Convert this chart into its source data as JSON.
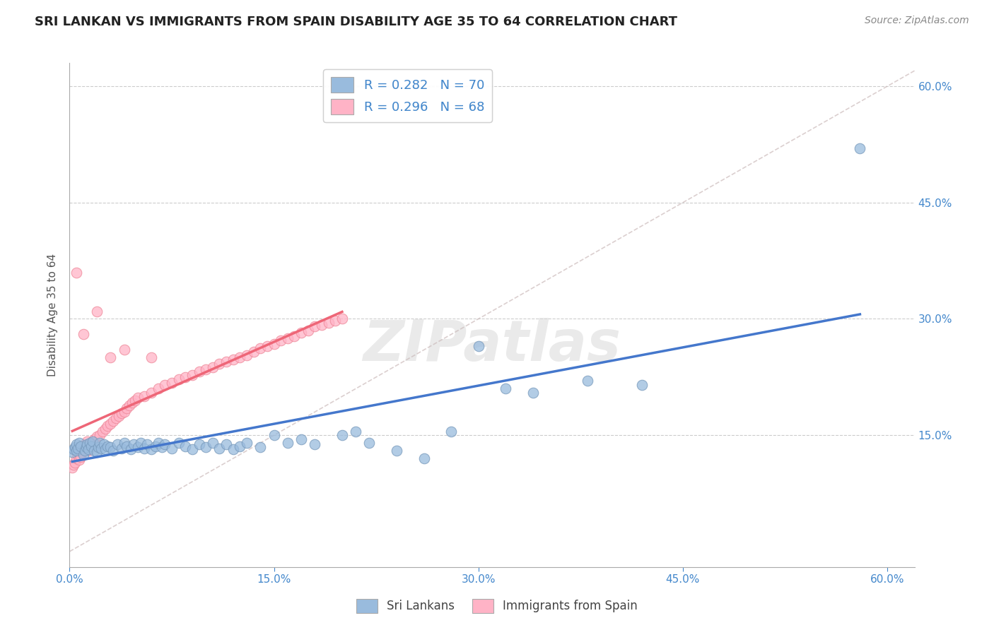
{
  "title": "SRI LANKAN VS IMMIGRANTS FROM SPAIN DISABILITY AGE 35 TO 64 CORRELATION CHART",
  "source": "Source: ZipAtlas.com",
  "ylabel": "Disability Age 35 to 64",
  "xlim": [
    0.0,
    0.62
  ],
  "ylim": [
    -0.02,
    0.63
  ],
  "sri_lankan_R": 0.282,
  "sri_lankan_N": 70,
  "spain_R": 0.296,
  "spain_N": 68,
  "blue_color": "#99BBDD",
  "pink_color": "#FFB3C6",
  "blue_edge_color": "#7799BB",
  "pink_edge_color": "#EE8899",
  "blue_line_color": "#4477CC",
  "pink_line_color": "#EE6677",
  "dashed_line_color": "#CCBBBB",
  "background_color": "#FFFFFF",
  "watermark": "ZIPatlas",
  "sri_lankans_x": [
    0.002,
    0.003,
    0.004,
    0.005,
    0.005,
    0.006,
    0.007,
    0.008,
    0.01,
    0.011,
    0.012,
    0.013,
    0.014,
    0.015,
    0.016,
    0.017,
    0.018,
    0.02,
    0.021,
    0.022,
    0.023,
    0.025,
    0.026,
    0.028,
    0.03,
    0.032,
    0.035,
    0.038,
    0.04,
    0.042,
    0.045,
    0.047,
    0.05,
    0.052,
    0.055,
    0.057,
    0.06,
    0.063,
    0.065,
    0.068,
    0.07,
    0.075,
    0.08,
    0.085,
    0.09,
    0.095,
    0.1,
    0.105,
    0.11,
    0.115,
    0.12,
    0.125,
    0.13,
    0.14,
    0.15,
    0.16,
    0.17,
    0.18,
    0.2,
    0.21,
    0.22,
    0.24,
    0.26,
    0.28,
    0.3,
    0.32,
    0.34,
    0.38,
    0.42,
    0.58
  ],
  "sri_lankans_y": [
    0.128,
    0.132,
    0.135,
    0.13,
    0.138,
    0.133,
    0.14,
    0.136,
    0.125,
    0.13,
    0.135,
    0.138,
    0.132,
    0.14,
    0.136,
    0.142,
    0.13,
    0.128,
    0.135,
    0.14,
    0.133,
    0.138,
    0.132,
    0.136,
    0.135,
    0.13,
    0.138,
    0.133,
    0.14,
    0.136,
    0.132,
    0.138,
    0.135,
    0.14,
    0.133,
    0.138,
    0.132,
    0.136,
    0.14,
    0.135,
    0.138,
    0.133,
    0.14,
    0.136,
    0.132,
    0.138,
    0.135,
    0.14,
    0.133,
    0.138,
    0.132,
    0.136,
    0.14,
    0.135,
    0.15,
    0.14,
    0.145,
    0.138,
    0.15,
    0.155,
    0.14,
    0.13,
    0.12,
    0.155,
    0.265,
    0.21,
    0.205,
    0.22,
    0.215,
    0.52
  ],
  "spain_x": [
    0.002,
    0.003,
    0.004,
    0.005,
    0.006,
    0.007,
    0.008,
    0.009,
    0.01,
    0.011,
    0.012,
    0.013,
    0.014,
    0.015,
    0.016,
    0.018,
    0.02,
    0.022,
    0.024,
    0.026,
    0.028,
    0.03,
    0.032,
    0.034,
    0.036,
    0.038,
    0.04,
    0.042,
    0.044,
    0.046,
    0.048,
    0.05,
    0.055,
    0.06,
    0.065,
    0.07,
    0.075,
    0.08,
    0.085,
    0.09,
    0.095,
    0.1,
    0.105,
    0.11,
    0.115,
    0.12,
    0.125,
    0.13,
    0.135,
    0.14,
    0.145,
    0.15,
    0.155,
    0.16,
    0.165,
    0.17,
    0.175,
    0.18,
    0.185,
    0.19,
    0.195,
    0.2,
    0.005,
    0.01,
    0.02,
    0.03,
    0.04,
    0.06
  ],
  "spain_y": [
    0.108,
    0.112,
    0.115,
    0.12,
    0.125,
    0.118,
    0.122,
    0.128,
    0.132,
    0.138,
    0.135,
    0.142,
    0.13,
    0.136,
    0.14,
    0.145,
    0.148,
    0.15,
    0.155,
    0.158,
    0.162,
    0.165,
    0.168,
    0.172,
    0.175,
    0.178,
    0.18,
    0.185,
    0.188,
    0.192,
    0.195,
    0.198,
    0.2,
    0.205,
    0.21,
    0.215,
    0.218,
    0.222,
    0.225,
    0.228,
    0.232,
    0.235,
    0.238,
    0.242,
    0.245,
    0.248,
    0.25,
    0.253,
    0.258,
    0.262,
    0.265,
    0.268,
    0.272,
    0.275,
    0.278,
    0.282,
    0.285,
    0.29,
    0.292,
    0.295,
    0.298,
    0.3,
    0.36,
    0.28,
    0.31,
    0.25,
    0.26,
    0.25
  ]
}
